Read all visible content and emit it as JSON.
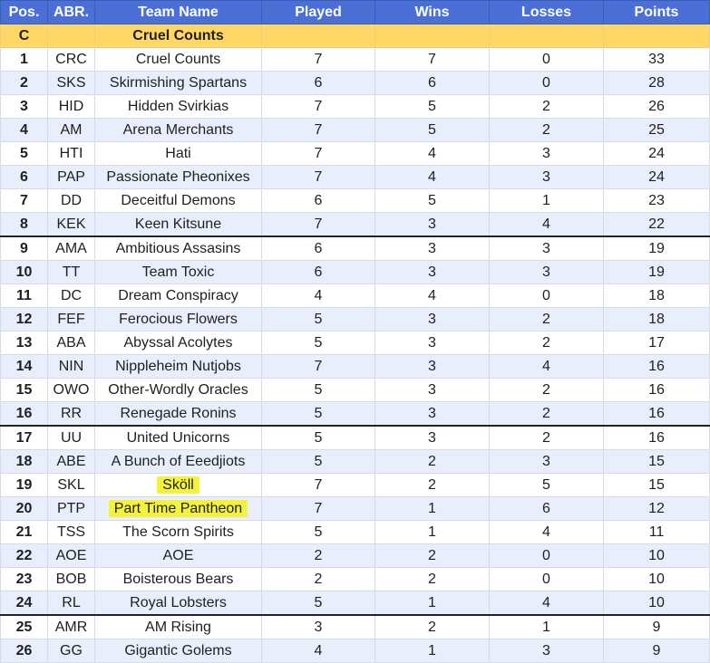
{
  "table": {
    "headers": {
      "pos": "Pos.",
      "abr": "ABR.",
      "team": "Team Name",
      "played": "Played",
      "wins": "Wins",
      "losses": "Losses",
      "points": "Points"
    },
    "group": {
      "letter": "C",
      "name": "Cruel Counts"
    },
    "rows": [
      {
        "pos": "1",
        "abr": "CRC",
        "team": "Cruel Counts",
        "played": "7",
        "wins": "7",
        "losses": "0",
        "points": "33"
      },
      {
        "pos": "2",
        "abr": "SKS",
        "team": "Skirmishing Spartans",
        "played": "6",
        "wins": "6",
        "losses": "0",
        "points": "28"
      },
      {
        "pos": "3",
        "abr": "HID",
        "team": "Hidden Svirkias",
        "played": "7",
        "wins": "5",
        "losses": "2",
        "points": "26"
      },
      {
        "pos": "4",
        "abr": "AM",
        "team": "Arena Merchants",
        "played": "7",
        "wins": "5",
        "losses": "2",
        "points": "25"
      },
      {
        "pos": "5",
        "abr": "HTI",
        "team": "Hati",
        "played": "7",
        "wins": "4",
        "losses": "3",
        "points": "24"
      },
      {
        "pos": "6",
        "abr": "PAP",
        "team": "Passionate Pheonixes",
        "played": "7",
        "wins": "4",
        "losses": "3",
        "points": "24"
      },
      {
        "pos": "7",
        "abr": "DD",
        "team": "Deceitful Demons",
        "played": "6",
        "wins": "5",
        "losses": "1",
        "points": "23"
      },
      {
        "pos": "8",
        "abr": "KEK",
        "team": "Keen Kitsune",
        "played": "7",
        "wins": "3",
        "losses": "4",
        "points": "22"
      },
      {
        "pos": "9",
        "abr": "AMA",
        "team": "Ambitious Assasins",
        "played": "6",
        "wins": "3",
        "losses": "3",
        "points": "19"
      },
      {
        "pos": "10",
        "abr": "TT",
        "team": "Team Toxic",
        "played": "6",
        "wins": "3",
        "losses": "3",
        "points": "19"
      },
      {
        "pos": "11",
        "abr": "DC",
        "team": "Dream Conspiracy",
        "played": "4",
        "wins": "4",
        "losses": "0",
        "points": "18"
      },
      {
        "pos": "12",
        "abr": "FEF",
        "team": "Ferocious Flowers",
        "played": "5",
        "wins": "3",
        "losses": "2",
        "points": "18"
      },
      {
        "pos": "13",
        "abr": "ABA",
        "team": "Abyssal Acolytes",
        "played": "5",
        "wins": "3",
        "losses": "2",
        "points": "17"
      },
      {
        "pos": "14",
        "abr": "NIN",
        "team": "Nippleheim Nutjobs",
        "played": "7",
        "wins": "3",
        "losses": "4",
        "points": "16"
      },
      {
        "pos": "15",
        "abr": "OWO",
        "team": "Other-Wordly Oracles",
        "played": "5",
        "wins": "3",
        "losses": "2",
        "points": "16"
      },
      {
        "pos": "16",
        "abr": "RR",
        "team": "Renegade Ronins",
        "played": "5",
        "wins": "3",
        "losses": "2",
        "points": "16"
      },
      {
        "pos": "17",
        "abr": "UU",
        "team": "United Unicorns",
        "played": "5",
        "wins": "3",
        "losses": "2",
        "points": "16"
      },
      {
        "pos": "18",
        "abr": "ABE",
        "team": "A Bunch of Eeedjiots",
        "played": "5",
        "wins": "2",
        "losses": "3",
        "points": "15"
      },
      {
        "pos": "19",
        "abr": "SKL",
        "team": "Sköll",
        "played": "7",
        "wins": "2",
        "losses": "5",
        "points": "15"
      },
      {
        "pos": "20",
        "abr": "PTP",
        "team": "Part Time Pantheon",
        "played": "7",
        "wins": "1",
        "losses": "6",
        "points": "12"
      },
      {
        "pos": "21",
        "abr": "TSS",
        "team": "The Scorn Spirits",
        "played": "5",
        "wins": "1",
        "losses": "4",
        "points": "11"
      },
      {
        "pos": "22",
        "abr": "AOE",
        "team": "AOE",
        "played": "2",
        "wins": "2",
        "losses": "0",
        "points": "10"
      },
      {
        "pos": "23",
        "abr": "BOB",
        "team": "Boisterous Bears",
        "played": "2",
        "wins": "2",
        "losses": "0",
        "points": "10"
      },
      {
        "pos": "24",
        "abr": "RL",
        "team": "Royal Lobsters",
        "played": "5",
        "wins": "1",
        "losses": "4",
        "points": "10"
      },
      {
        "pos": "25",
        "abr": "AMR",
        "team": "AM Rising",
        "played": "3",
        "wins": "2",
        "losses": "1",
        "points": "9"
      },
      {
        "pos": "26",
        "abr": "GG",
        "team": "Gigantic Golems",
        "played": "4",
        "wins": "1",
        "losses": "3",
        "points": "9"
      }
    ]
  },
  "highlights": {
    "color": "#f4f23a",
    "teams": [
      "Sköll",
      "Part Time Pantheon"
    ]
  },
  "colors": {
    "header_bg": "#4a6fd6",
    "group_row_bg": "#ffd766",
    "row_alt_bg": "#e8eefc",
    "cut_line": "#222222"
  }
}
